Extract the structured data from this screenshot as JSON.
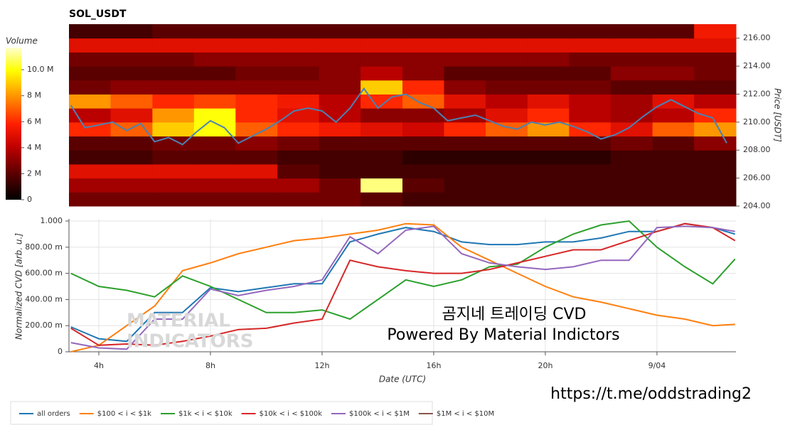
{
  "chart_data": [
    {
      "type": "heatmap",
      "title": "SOL_USDT",
      "y_label": "Price [USDT]",
      "xlim": [
        2.93,
        26.83
      ],
      "ylim": [
        204,
        217
      ],
      "yticks": [
        {
          "value": 204,
          "label": "204.00"
        },
        {
          "value": 206,
          "label": "206.00"
        },
        {
          "value": 208,
          "label": "208.00"
        },
        {
          "value": 210,
          "label": "210.00"
        },
        {
          "value": 212,
          "label": "212.00"
        },
        {
          "value": 214,
          "label": "214.00"
        },
        {
          "value": 216,
          "label": "216.00"
        }
      ],
      "x_bins": [
        2.93,
        4.42,
        5.92,
        7.41,
        8.9,
        10.4,
        11.89,
        13.38,
        14.88,
        16.37,
        17.86,
        19.36,
        20.85,
        22.34,
        23.84,
        25.33,
        26.83
      ],
      "y_bins": [
        204,
        205,
        206,
        207,
        208,
        209,
        210,
        211,
        212,
        213,
        214,
        215,
        216,
        217
      ],
      "z": [
        [
          2.5,
          2.5,
          2.5,
          2.5,
          2.5,
          2.5,
          2.5,
          2,
          1.5,
          1.5,
          1.5,
          1.5,
          1.5,
          1.5,
          1.5,
          1.5
        ],
        [
          3.5,
          3.5,
          3.5,
          3.5,
          3.5,
          3.5,
          2.5,
          11,
          2,
          1.5,
          1.5,
          1.5,
          1.5,
          1.5,
          1.5,
          1.5
        ],
        [
          5,
          5,
          5,
          5,
          5,
          2,
          1.5,
          1.5,
          1.5,
          1.5,
          1.5,
          1.5,
          1.5,
          1.5,
          1.5,
          1.5
        ],
        [
          1.5,
          1.5,
          2,
          2,
          2,
          1.5,
          1.5,
          1.5,
          1,
          1,
          1,
          1,
          1,
          1.5,
          1.5,
          1.5
        ],
        [
          2,
          2,
          2.5,
          2.5,
          3,
          2.5,
          2,
          2,
          2,
          2,
          2,
          2,
          2,
          2.5,
          2,
          3
        ],
        [
          6,
          7,
          9,
          10,
          7,
          6,
          5.5,
          5,
          4.5,
          6,
          7,
          8,
          6,
          5,
          7,
          8
        ],
        [
          4,
          5,
          8,
          10,
          6,
          5,
          4,
          3,
          3,
          3.5,
          5,
          6,
          4,
          3.5,
          4,
          6
        ],
        [
          8,
          7,
          6,
          6.5,
          6,
          5.5,
          4,
          6,
          7,
          5,
          4,
          5,
          4,
          3.5,
          5,
          4
        ],
        [
          2.5,
          3,
          3,
          3,
          3,
          3,
          3,
          9,
          6,
          3,
          2.5,
          2.5,
          2.5,
          2,
          2,
          2
        ],
        [
          2,
          2,
          2,
          2,
          2.5,
          2.5,
          3,
          4,
          3,
          2,
          2,
          2,
          2,
          3,
          3,
          2.5
        ],
        [
          2.5,
          2.5,
          2.5,
          3,
          3,
          3,
          3,
          3,
          3,
          3,
          3,
          3,
          2.5,
          2.5,
          2.5,
          2.5
        ],
        [
          5,
          5,
          5,
          5,
          5,
          5,
          5,
          5,
          5,
          5,
          5,
          5,
          5,
          5,
          5,
          5
        ],
        [
          1.5,
          1.5,
          2,
          2,
          2,
          2,
          2,
          2,
          2,
          2,
          2,
          2,
          2,
          2,
          2,
          5.5
        ]
      ],
      "colorbar": {
        "title": "Volume",
        "zlim": [
          0,
          11.7
        ],
        "ticks": [
          0,
          {
            "value": 2,
            "label": "2 M"
          },
          {
            "value": 4,
            "label": "4 M"
          },
          {
            "value": 6,
            "label": "6 M"
          },
          {
            "value": 8,
            "label": "8 M"
          },
          {
            "value": 10,
            "label": "10.0 M"
          }
        ]
      },
      "series": [
        {
          "color": "#4a82b4",
          "x": [
            3,
            3.5,
            4,
            4.5,
            5,
            5.5,
            6,
            6.5,
            7,
            7.5,
            8,
            8.5,
            9,
            9.5,
            10,
            10.5,
            11,
            11.5,
            12,
            12.5,
            13,
            13.5,
            14,
            14.5,
            15,
            15.5,
            16,
            16.5,
            17,
            17.5,
            18,
            18.5,
            19,
            19.5,
            20,
            20.5,
            21,
            21.5,
            22,
            22.5,
            23,
            23.5,
            24,
            24.5,
            25,
            25.5,
            26,
            26.5
          ],
          "values": [
            211.2,
            209.6,
            209.8,
            210.0,
            209.4,
            209.9,
            208.6,
            208.9,
            208.4,
            209.3,
            210.1,
            209.6,
            208.5,
            209.0,
            209.5,
            210.1,
            210.8,
            211.0,
            210.8,
            210.0,
            211.0,
            212.4,
            211.0,
            211.8,
            212.0,
            211.4,
            211.0,
            210.1,
            210.3,
            210.5,
            210.1,
            209.7,
            209.5,
            210.0,
            209.8,
            210.0,
            209.7,
            209.3,
            208.8,
            209.1,
            209.6,
            210.4,
            211.1,
            211.6,
            211.1,
            210.6,
            210.3,
            208.5
          ]
        }
      ]
    },
    {
      "type": "line",
      "x_label": "Date (UTC)",
      "y_label": "Normalized CVD [arb. u.]",
      "xlim": [
        2.93,
        26.83
      ],
      "ylim": [
        0,
        1
      ],
      "xticks": [
        {
          "value": 4,
          "label": "4h"
        },
        {
          "value": 8,
          "label": "8h"
        },
        {
          "value": 12,
          "label": "12h"
        },
        {
          "value": 16,
          "label": "16h"
        },
        {
          "value": 20,
          "label": "20h"
        },
        {
          "value": 24,
          "label": "9/04"
        }
      ],
      "yticks": [
        0,
        {
          "value": 0.2,
          "label": "200.00 m"
        },
        {
          "value": 0.4,
          "label": "400.00 m"
        },
        {
          "value": 0.6,
          "label": "600.00 m"
        },
        {
          "value": 0.8,
          "label": "800.00 m"
        },
        {
          "value": 1,
          "label": "1.000"
        }
      ],
      "grid": true,
      "legend": "bottom",
      "x": [
        3,
        4,
        5,
        6,
        7,
        8,
        9,
        10,
        11,
        12,
        13,
        14,
        15,
        16,
        17,
        18,
        19,
        20,
        21,
        22,
        23,
        24,
        25,
        26,
        26.8
      ],
      "series": [
        {
          "name": "all orders",
          "color": "#1f77b4",
          "values": [
            0.19,
            0.1,
            0.08,
            0.3,
            0.3,
            0.49,
            0.46,
            0.49,
            0.52,
            0.52,
            0.84,
            0.9,
            0.95,
            0.92,
            0.84,
            0.82,
            0.82,
            0.84,
            0.84,
            0.87,
            0.92,
            0.92,
            0.98,
            0.95,
            0.9
          ]
        },
        {
          "name": "$100 < i < $1k",
          "color": "#ff7f0e",
          "values": [
            0,
            0.05,
            0.2,
            0.35,
            0.62,
            0.68,
            0.75,
            0.8,
            0.85,
            0.87,
            0.9,
            0.93,
            0.98,
            0.97,
            0.8,
            0.7,
            0.6,
            0.5,
            0.42,
            0.38,
            0.33,
            0.28,
            0.25,
            0.2,
            0.21
          ]
        },
        {
          "name": "$1k < i < $10k",
          "color": "#2ca02c",
          "values": [
            0.6,
            0.5,
            0.47,
            0.42,
            0.58,
            0.5,
            0.4,
            0.3,
            0.3,
            0.32,
            0.25,
            0.4,
            0.55,
            0.5,
            0.55,
            0.65,
            0.67,
            0.8,
            0.9,
            0.97,
            1,
            0.8,
            0.65,
            0.52,
            0.71
          ]
        },
        {
          "name": "$10k < i < $100k",
          "color": "#d62728",
          "values": [
            0.18,
            0.05,
            0.06,
            0.05,
            0.08,
            0.12,
            0.17,
            0.18,
            0.22,
            0.25,
            0.7,
            0.65,
            0.62,
            0.6,
            0.6,
            0.63,
            0.68,
            0.73,
            0.78,
            0.78,
            0.85,
            0.92,
            0.98,
            0.95,
            0.85
          ]
        },
        {
          "name": "$100k < i < $1M",
          "color": "#9467bd",
          "values": [
            0.07,
            0.03,
            0.02,
            0.25,
            0.25,
            0.48,
            0.43,
            0.47,
            0.5,
            0.55,
            0.88,
            0.75,
            0.93,
            0.96,
            0.75,
            0.68,
            0.65,
            0.63,
            0.65,
            0.7,
            0.7,
            0.95,
            0.96,
            0.95,
            0.92
          ]
        },
        {
          "name": "$1M < i < $10M",
          "color": "#8c564b",
          "values": [
            null,
            null,
            null,
            null,
            null,
            null,
            null,
            null,
            null,
            null,
            null,
            null,
            null,
            null,
            null,
            null,
            null,
            null,
            null,
            null,
            null,
            null,
            null,
            null,
            null
          ]
        }
      ],
      "annotations": [
        "곰지네 트레이딩 CVD",
        "Powered By Material Indictors"
      ],
      "watermark": [
        "MATERIAL",
        "INDICATORS"
      ]
    }
  ],
  "footer_link": "https://t.me/oddstrading2"
}
